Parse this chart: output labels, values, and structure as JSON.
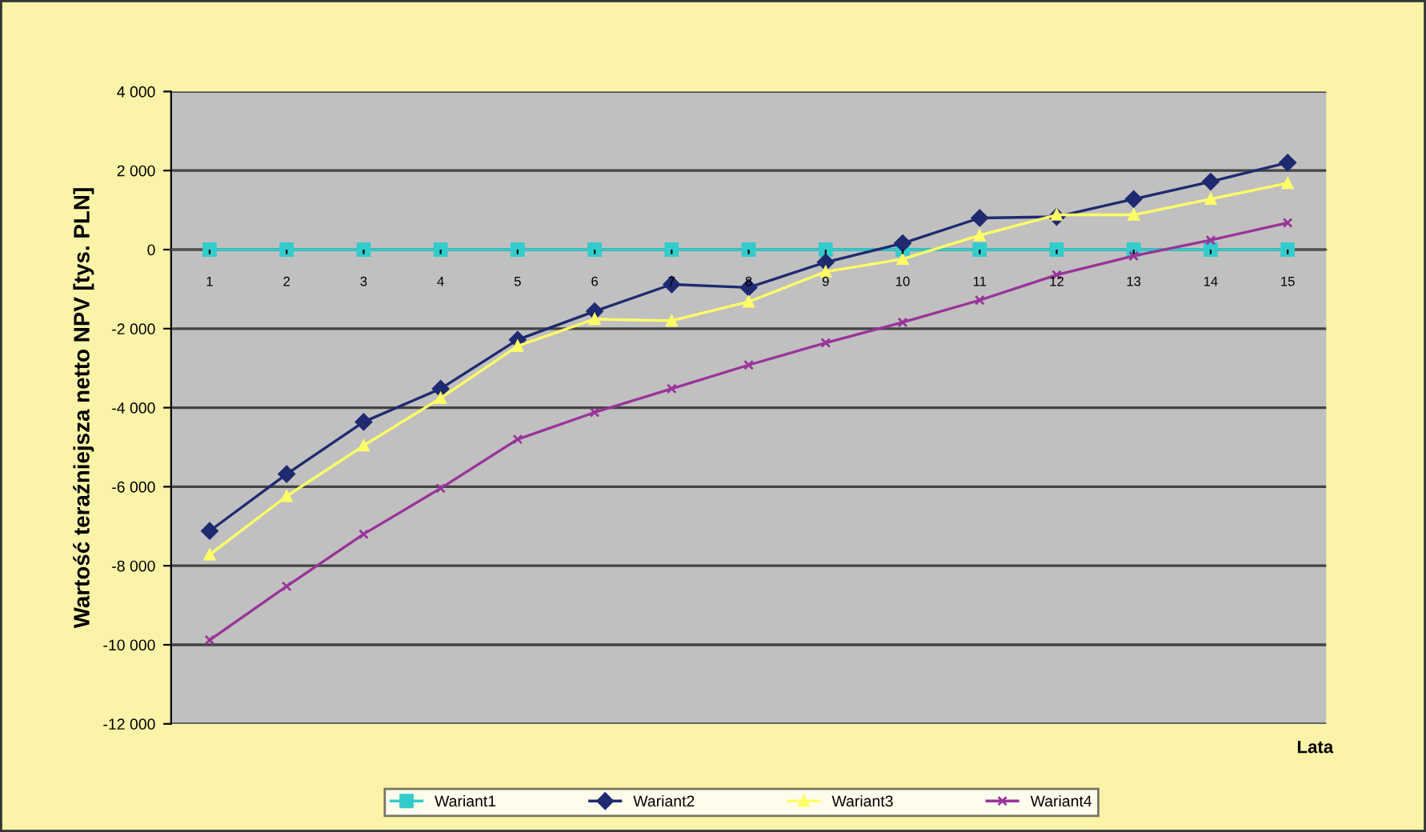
{
  "chart_data": {
    "type": "line",
    "ylabel": "Wartość teraźniejsza netto NPV [tys. PLN]",
    "xlabel": "Lata",
    "categories": [
      "1",
      "2",
      "3",
      "4",
      "5",
      "6",
      "7",
      "8",
      "9",
      "10",
      "11",
      "12",
      "13",
      "14",
      "15"
    ],
    "ylim": [
      -12000,
      4000
    ],
    "yticks": [
      {
        "value": -12000,
        "label": "-12 000"
      },
      {
        "value": -10000,
        "label": "-10 000"
      },
      {
        "value": -8000,
        "label": "-8 000"
      },
      {
        "value": -6000,
        "label": "-6 000"
      },
      {
        "value": -4000,
        "label": "-4 000"
      },
      {
        "value": -2000,
        "label": "-2 000"
      },
      {
        "value": 0,
        "label": "0"
      },
      {
        "value": 2000,
        "label": "2 000"
      },
      {
        "value": 4000,
        "label": "4 000"
      }
    ],
    "grid": "y",
    "legend": "bottom",
    "line_style": "solid",
    "series": [
      {
        "name": "Wariant1",
        "color": "#33cccc",
        "marker": "square",
        "values": [
          0,
          0,
          0,
          0,
          0,
          0,
          0,
          0,
          0,
          0,
          0,
          0,
          0,
          0,
          0
        ]
      },
      {
        "name": "Wariant2",
        "color": "#1f2a70",
        "marker": "diamond",
        "values": [
          -7120,
          -5680,
          -4360,
          -3520,
          -2280,
          -1560,
          -880,
          -960,
          -320,
          160,
          800,
          830,
          1280,
          1720,
          2200
        ]
      },
      {
        "name": "Wariant3",
        "color": "#ffff66",
        "marker": "triangle",
        "values": [
          -7720,
          -6240,
          -4960,
          -3760,
          -2440,
          -1760,
          -1800,
          -1320,
          -560,
          -240,
          360,
          880,
          880,
          1280,
          1680
        ]
      },
      {
        "name": "Wariant4",
        "color": "#993399",
        "marker": "cross",
        "values": [
          -9880,
          -8520,
          -7200,
          -6040,
          -4800,
          -4120,
          -3520,
          -2920,
          -2360,
          -1840,
          -1280,
          -640,
          -160,
          240,
          680
        ]
      }
    ]
  }
}
